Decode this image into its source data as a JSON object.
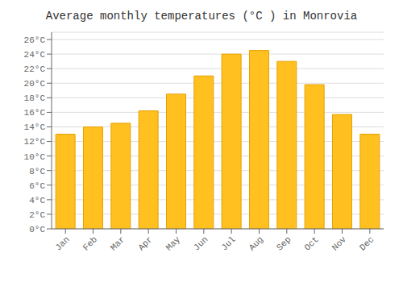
{
  "chart_data": {
    "type": "bar",
    "title": "Average monthly temperatures (°C ) in Monrovia",
    "categories": [
      "Jan",
      "Feb",
      "Mar",
      "Apr",
      "May",
      "Jun",
      "Jul",
      "Aug",
      "Sep",
      "Oct",
      "Nov",
      "Dec"
    ],
    "values": [
      13.0,
      14.0,
      14.5,
      16.2,
      18.5,
      21.0,
      24.0,
      24.5,
      23.0,
      19.8,
      15.7,
      13.0
    ],
    "color": "#FFC020",
    "ylim": [
      0,
      27
    ],
    "yticks": [
      {
        "value": 0,
        "label": "0°C"
      },
      {
        "value": 2,
        "label": "2°C"
      },
      {
        "value": 4,
        "label": "4°C"
      },
      {
        "value": 6,
        "label": "6°C"
      },
      {
        "value": 8,
        "label": "8°C"
      },
      {
        "value": 10,
        "label": "10°C"
      },
      {
        "value": 12,
        "label": "12°C"
      },
      {
        "value": 14,
        "label": "14°C"
      },
      {
        "value": 16,
        "label": "16°C"
      },
      {
        "value": 18,
        "label": "18°C"
      },
      {
        "value": 20,
        "label": "20°C"
      },
      {
        "value": 22,
        "label": "22°C"
      },
      {
        "value": 24,
        "label": "24°C"
      },
      {
        "value": 26,
        "label": "26°C"
      }
    ],
    "grid": true
  }
}
